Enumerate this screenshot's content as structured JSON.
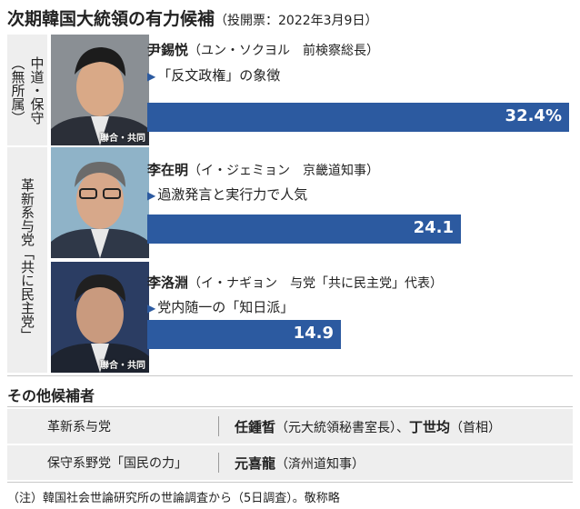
{
  "title": "次期韓国大統領の有力候補",
  "subtitle": "（投開票：2022年3月9日）",
  "chart_data": {
    "type": "bar",
    "orientation": "horizontal",
    "unit": "%",
    "xlim": [
      0,
      35
    ],
    "categories": [
      "尹錫悦",
      "李在明",
      "李洛淵"
    ],
    "values": [
      32.4,
      24.1,
      14.9
    ],
    "value_labels": [
      "32.4%",
      "24.1",
      "14.9"
    ]
  },
  "groups": [
    {
      "columns": [
        "中道・保守",
        "（無所属）"
      ]
    },
    {
      "columns": [
        "革新系与党「共に民主党」"
      ]
    }
  ],
  "candidates": [
    {
      "name": "尹錫悦",
      "info": "（ユン・ソクヨル　前検察総長）",
      "desc": "「反文政権」の象徴",
      "credit": "聯合・共同",
      "color": "#2c5aa0"
    },
    {
      "name": "李在明",
      "info": "（イ・ジェミョン　京畿道知事）",
      "desc": "過激発言と実行力で人気",
      "credit": "",
      "color": "#2c5aa0"
    },
    {
      "name": "李洛淵",
      "info": "（イ・ナギョン　与党「共に民主党」代表）",
      "desc": "党内随一の「知日派」",
      "credit": "聯合・共同",
      "color": "#2c5aa0"
    }
  ],
  "others": {
    "title": "その他候補者",
    "rows": [
      {
        "category": "革新系与党",
        "c1": "任鍾晳",
        "c1_info": "（元大統領秘書室長）、",
        "c2": "丁世均",
        "c2_info": "（首相）"
      },
      {
        "category": "保守系野党「国民の力」",
        "c1": "元喜龍",
        "c1_info": "（済州道知事）",
        "c2": "",
        "c2_info": ""
      }
    ]
  },
  "note": "（注）韓国社会世論研究所の世論調査から（5日調査）。敬称略"
}
